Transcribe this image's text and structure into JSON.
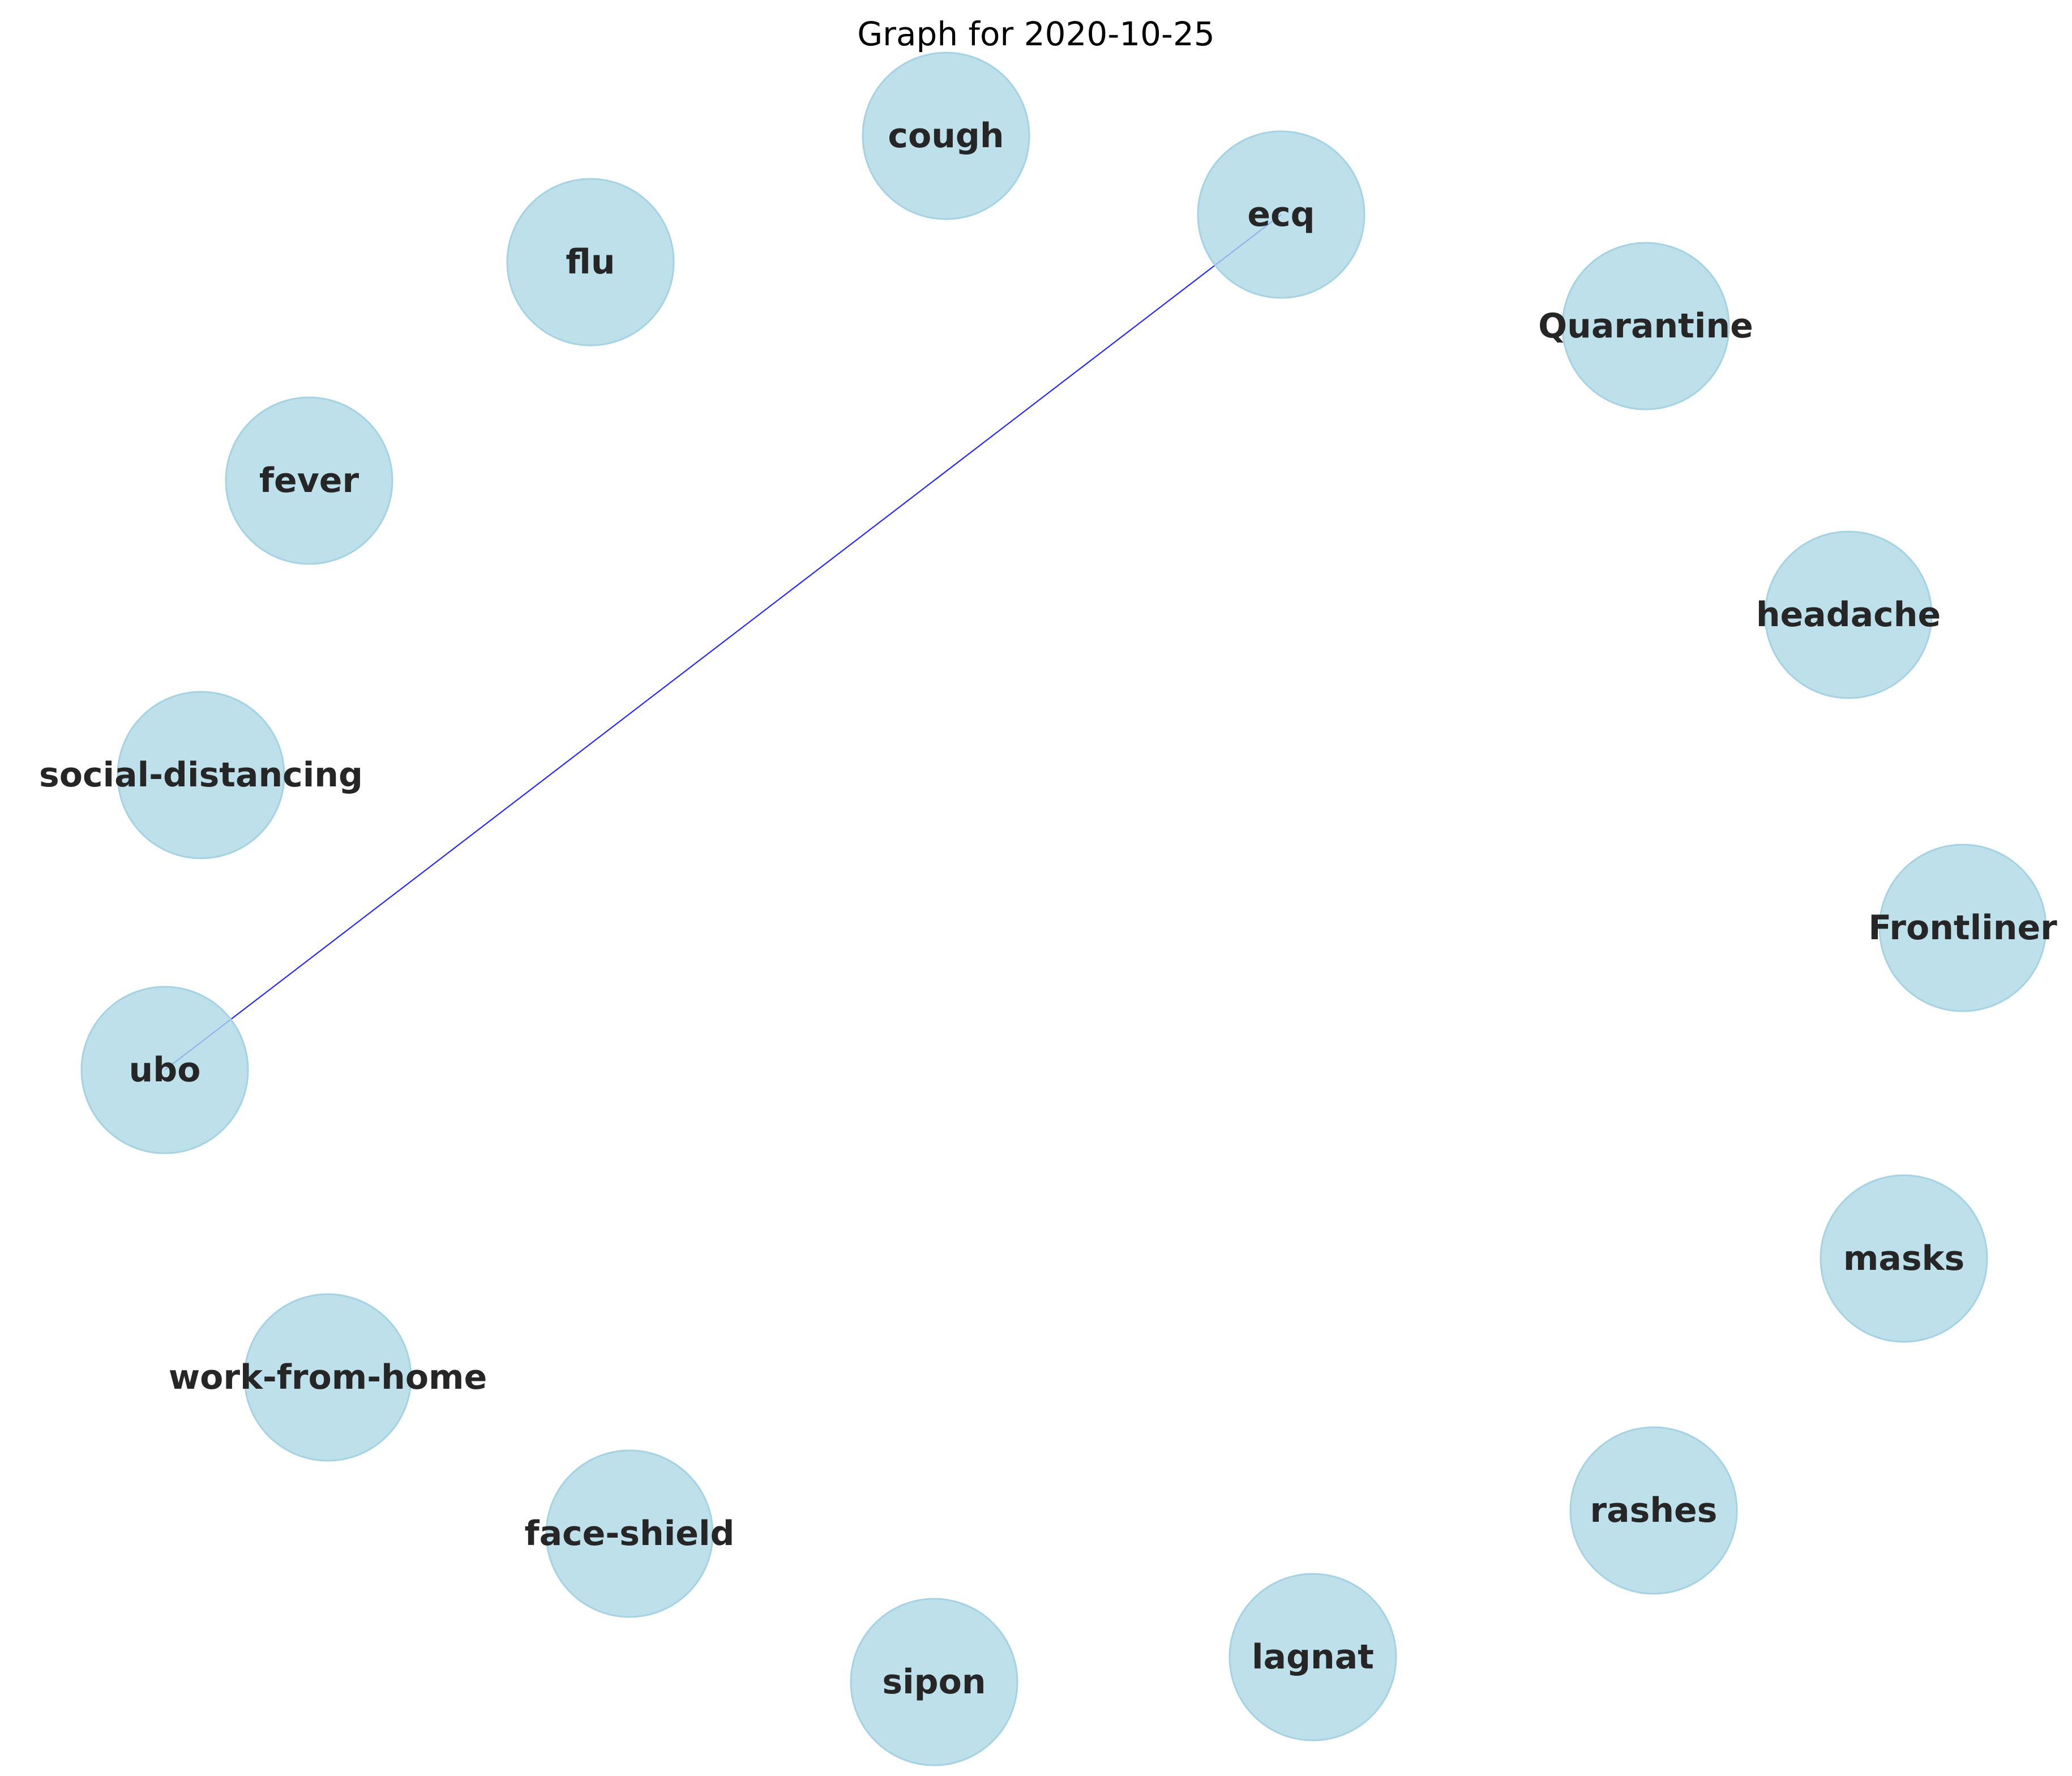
{
  "title": "Graph for 2020-10-25",
  "colors": {
    "node_fill": "#ADD8E6",
    "edge": "#0000FF",
    "label": "#262626",
    "background": "#FFFFFF"
  },
  "nodes": [
    {
      "id": "cough",
      "label": "cough"
    },
    {
      "id": "ecq",
      "label": "ecq"
    },
    {
      "id": "flu",
      "label": "flu"
    },
    {
      "id": "Quarantine",
      "label": "Quarantine"
    },
    {
      "id": "fever",
      "label": "fever"
    },
    {
      "id": "headache",
      "label": "headache"
    },
    {
      "id": "social-distancing",
      "label": "social-distancing"
    },
    {
      "id": "Frontliner",
      "label": "Frontliner"
    },
    {
      "id": "ubo",
      "label": "ubo"
    },
    {
      "id": "masks",
      "label": "masks"
    },
    {
      "id": "work-from-home",
      "label": "work-from-home"
    },
    {
      "id": "rashes",
      "label": "rashes"
    },
    {
      "id": "face-shield",
      "label": "face-shield"
    },
    {
      "id": "lagnat",
      "label": "lagnat"
    },
    {
      "id": "sipon",
      "label": "sipon"
    }
  ],
  "edges": [
    {
      "source": "ecq",
      "target": "ubo"
    }
  ]
}
